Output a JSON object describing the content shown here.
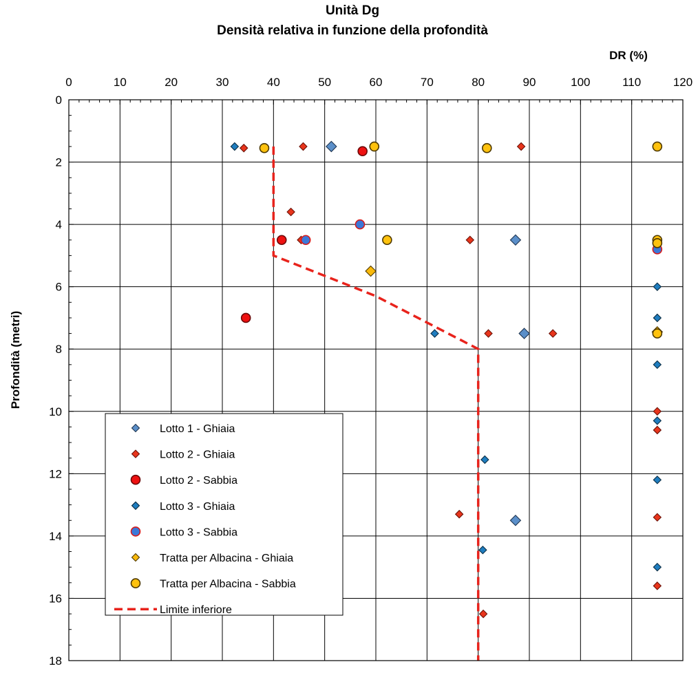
{
  "chart_data": {
    "type": "scatter",
    "title": "Unità Dg",
    "subtitle": "Densità relativa in funzione della profondità",
    "xlabel": "DR (%)",
    "ylabel": "Profondità (metri)",
    "xlim": [
      0,
      120
    ],
    "ylim": [
      0,
      18
    ],
    "y_inverted": true,
    "x_axis_position": "top",
    "grid": true,
    "legend_position": "bottom-left",
    "x_ticks": [
      "0",
      "10",
      "20",
      "30",
      "40",
      "50",
      "60",
      "70",
      "80",
      "90",
      "100",
      "110",
      "120"
    ],
    "y_ticks": [
      "0",
      "2",
      "4",
      "6",
      "8",
      "10",
      "12",
      "14",
      "16",
      "18"
    ],
    "series": [
      {
        "name": "Lotto 1 - Ghiaia",
        "marker": "diamond-large",
        "fill": "#5b8fc9",
        "stroke": "#1f3550",
        "points": [
          [
            51.3,
            1.5
          ],
          [
            87.3,
            4.5
          ],
          [
            89.0,
            7.5
          ],
          [
            87.3,
            13.5
          ]
        ]
      },
      {
        "name": "Lotto 2 - Ghiaia",
        "marker": "diamond-small",
        "fill": "#e8351c",
        "stroke": "#6b1208",
        "points": [
          [
            34.2,
            1.55
          ],
          [
            45.8,
            1.5
          ],
          [
            88.4,
            1.5
          ],
          [
            43.4,
            3.6
          ],
          [
            45.4,
            4.5
          ],
          [
            78.4,
            4.5
          ],
          [
            82.0,
            7.5
          ],
          [
            94.6,
            7.5
          ],
          [
            115.0,
            10.0
          ],
          [
            115.0,
            10.6
          ],
          [
            76.3,
            13.3
          ],
          [
            115.0,
            13.4
          ],
          [
            115.0,
            15.6
          ],
          [
            81.0,
            16.5
          ]
        ]
      },
      {
        "name": "Lotto 2 - Sabbia",
        "marker": "circle",
        "fill": "#ee1111",
        "stroke": "#6b0808",
        "points": [
          [
            57.4,
            1.65
          ],
          [
            41.6,
            4.5
          ],
          [
            34.6,
            7.0
          ]
        ]
      },
      {
        "name": "Lotto 3 - Ghiaia",
        "marker": "diamond-small",
        "fill": "#1f7dbf",
        "stroke": "#0b2d44",
        "points": [
          [
            32.4,
            1.5
          ],
          [
            71.5,
            7.5
          ],
          [
            115.0,
            6.0
          ],
          [
            115.0,
            7.0
          ],
          [
            115.0,
            8.5
          ],
          [
            115.0,
            10.3
          ],
          [
            81.3,
            11.55
          ],
          [
            115.0,
            12.2
          ],
          [
            80.9,
            14.45
          ],
          [
            115.0,
            15.0
          ]
        ]
      },
      {
        "name": "Lotto 3 - Sabbia",
        "marker": "circle",
        "fill": "#3b78d8",
        "stroke": "#d81b1b",
        "points": [
          [
            56.9,
            4.0
          ],
          [
            46.3,
            4.5
          ],
          [
            115.0,
            4.8
          ]
        ]
      },
      {
        "name": "Tratta per Albacina - Ghiaia",
        "marker": "diamond-large",
        "fill": "#f9b90b",
        "stroke": "#4d3800",
        "points": [
          [
            59.0,
            5.5
          ],
          [
            115.0,
            7.45
          ]
        ]
      },
      {
        "name": "Tratta per Albacina - Sabbia",
        "marker": "circle",
        "fill": "#ffc20e",
        "stroke": "#4d3800",
        "points": [
          [
            38.2,
            1.55
          ],
          [
            59.7,
            1.5
          ],
          [
            81.7,
            1.55
          ],
          [
            115.0,
            1.5
          ],
          [
            62.2,
            4.5
          ],
          [
            115.0,
            4.5
          ],
          [
            115.0,
            4.6
          ],
          [
            115.0,
            7.5
          ]
        ]
      },
      {
        "name": "Limite inferiore",
        "marker": "dashed-line",
        "stroke": "#e8231c",
        "points": [
          [
            40,
            1.5
          ],
          [
            40,
            5
          ],
          [
            60,
            6.3
          ],
          [
            80,
            8
          ],
          [
            80,
            18
          ]
        ]
      }
    ]
  }
}
